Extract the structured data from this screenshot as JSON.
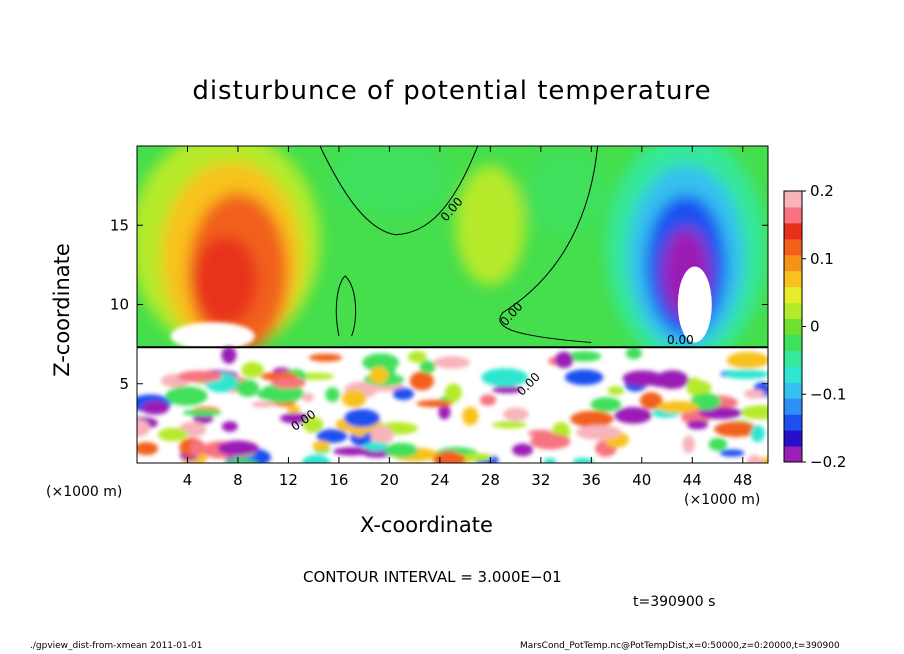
{
  "chart_data": {
    "type": "heatmap",
    "title": "disturbunce of potential temperature",
    "xlabel": "X-coordinate",
    "ylabel": "Z-coordinate",
    "x_unit": "(×1000 m)",
    "x_ticks": [
      4,
      8,
      12,
      16,
      20,
      24,
      28,
      32,
      36,
      40,
      44,
      48
    ],
    "xlim": [
      0,
      50
    ],
    "y_ticks": [
      5,
      10,
      15
    ],
    "ylim": [
      0,
      20
    ],
    "colorbar": {
      "range": [
        -0.2,
        0.2
      ],
      "tick_labels": [
        "0.2",
        "0.1",
        "0",
        "−0.1",
        "−0.2"
      ],
      "tick_values": [
        0.2,
        0.1,
        0,
        -0.1,
        -0.2
      ],
      "colors": [
        "#9b1fb5",
        "#2a0fc8",
        "#1e4ff0",
        "#2f8ff5",
        "#35c0ef",
        "#2ee6d0",
        "#35e89a",
        "#3fe05b",
        "#6fe02f",
        "#b5ea2a",
        "#e8ec2b",
        "#f8c21f",
        "#f6921a",
        "#f2601a",
        "#e8301d",
        "#f7737f",
        "#f8b4ba"
      ],
      "contour_label": "0.00"
    },
    "regions": [
      {
        "x": [
          2,
          14
        ],
        "z": [
          9,
          20
        ],
        "value": 0.1
      },
      {
        "x": [
          5,
          8
        ],
        "z": [
          9,
          15
        ],
        "value": 0.15
      },
      {
        "x": [
          40,
          48
        ],
        "z": [
          8,
          18
        ],
        "value": -0.12
      },
      {
        "x": [
          42,
          46
        ],
        "z": [
          8,
          13
        ],
        "value": -0.25
      },
      {
        "x": [
          14,
          36
        ],
        "z": [
          9,
          20
        ],
        "value": 0.0
      },
      {
        "x": [
          0,
          50
        ],
        "z": [
          0,
          7.5
        ],
        "value": "mixed"
      }
    ]
  },
  "footer": {
    "contour_interval": "CONTOUR INTERVAL = 3.000E−01",
    "time": "t=390900 s",
    "left": "./gpview_dist-from-xmean  2011-01-01",
    "right": "MarsCond_PotTemp.nc@PotTempDist,x=0:50000,z=0:20000,t=390900"
  },
  "colors": {
    "background": "#ffffff",
    "plot_green": "#45de4c"
  }
}
